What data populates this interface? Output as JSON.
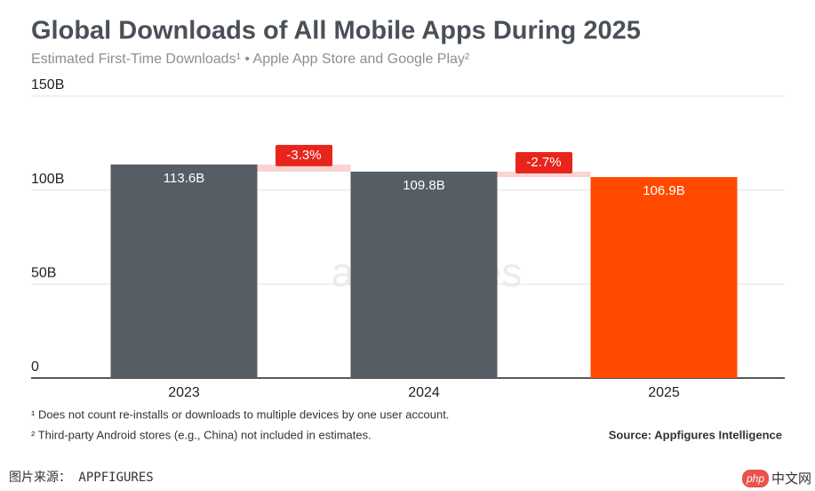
{
  "chart_data": {
    "type": "bar",
    "title": "Global Downloads of All Mobile Apps During 2025",
    "subtitle": "Estimated First-Time Downloads¹ • Apple App Store and Google Play²",
    "categories": [
      "2023",
      "2024",
      "2025"
    ],
    "values": [
      113.6,
      109.8,
      106.9
    ],
    "value_labels": [
      "113.6B",
      "109.8B",
      "106.9B"
    ],
    "colors": [
      "#565d65",
      "#565d65",
      "#ff4a00"
    ],
    "ylim": [
      0,
      150
    ],
    "yticks": [
      0,
      {
        "value": 50,
        "label": "50B"
      },
      {
        "value": 100,
        "label": "100B"
      },
      {
        "value": 150,
        "label": "150B"
      }
    ],
    "grid": true,
    "changes": {
      "values": [
        -3.3,
        -2.7
      ],
      "value_labels": [
        "-3.3%",
        "-2.7%"
      ],
      "color": "#e8251c"
    },
    "watermark": "appfigures",
    "footnotes": [
      "¹ Does not count re-installs or downloads to multiple devices by one user account.",
      "² Third-party Android stores (e.g., China) not included in estimates."
    ],
    "source": "Source: Appfigures Intelligence"
  },
  "page": {
    "caption": "图片来源： APPFIGURES",
    "logo": [
      "php",
      "中文网"
    ]
  }
}
